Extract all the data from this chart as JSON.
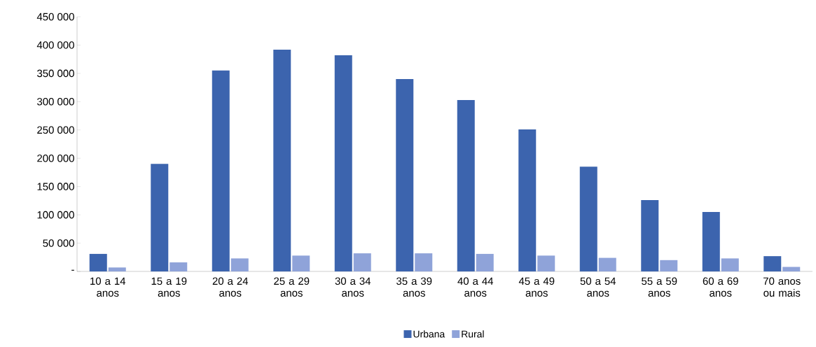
{
  "chart_data": {
    "type": "bar",
    "categories": [
      "10 a 14 anos",
      "15 a 19 anos",
      "20 a 24 anos",
      "25 a 29 anos",
      "30 a 34 anos",
      "35 a 39 anos",
      "40 a 44 anos",
      "45 a 49 anos",
      "50 a 54 anos",
      "55 a 59 anos",
      "60 a 69 anos",
      "70 anos ou mais"
    ],
    "series": [
      {
        "name": "Urbana",
        "color": "#3c64ae",
        "values": [
          31000,
          190000,
          355000,
          392000,
          382000,
          340000,
          303000,
          251000,
          185000,
          126000,
          105000,
          27000
        ]
      },
      {
        "name": "Rural",
        "color": "#8fa3d9",
        "values": [
          7000,
          16000,
          23000,
          28000,
          32000,
          32000,
          31000,
          28000,
          24000,
          20000,
          23000,
          8000
        ]
      }
    ],
    "ylim": [
      0,
      450000
    ],
    "yticks": [
      {
        "value": 0,
        "label": "-"
      },
      {
        "value": 50000,
        "label": "50 000"
      },
      {
        "value": 100000,
        "label": "100 000"
      },
      {
        "value": 150000,
        "label": "150 000"
      },
      {
        "value": 200000,
        "label": "200 000"
      },
      {
        "value": 250000,
        "label": "250 000"
      },
      {
        "value": 300000,
        "label": "300 000"
      },
      {
        "value": 350000,
        "label": "350 000"
      },
      {
        "value": 400000,
        "label": "400 000"
      },
      {
        "value": 450000,
        "label": "450 000"
      }
    ],
    "grid": false,
    "legend": "bottom"
  }
}
